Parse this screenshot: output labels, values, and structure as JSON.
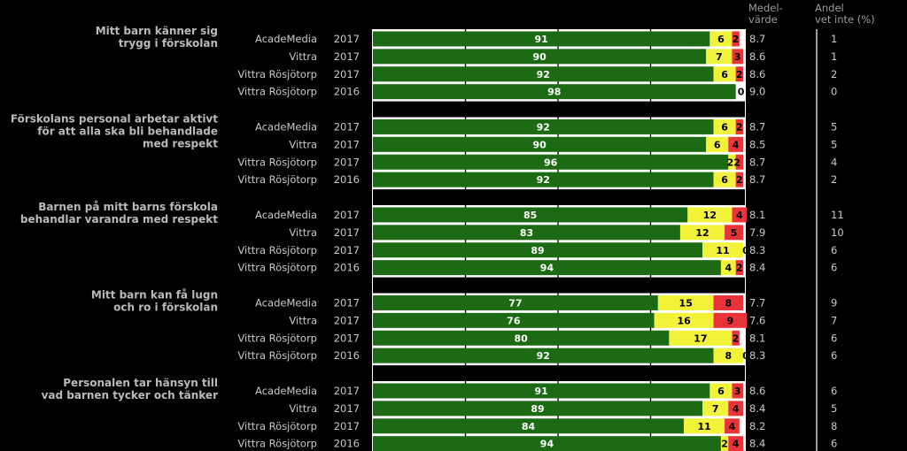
{
  "chart_data": {
    "type": "stacked_bar_horizontal",
    "column_headers": {
      "mean": [
        "Medel-",
        "värde"
      ],
      "dont_know": [
        "Andel",
        "vet inte (%)"
      ]
    },
    "colors": {
      "positive": "#1c6b14",
      "neutral": "#f2f23a",
      "negative": "#e8333a",
      "grid": "#000000",
      "text": "#c8c8c8"
    },
    "questions": [
      {
        "lines": [
          "Mitt barn känner sig",
          "trygg i förskolan"
        ],
        "rows": [
          {
            "label": "AcadeMedia",
            "year": "2017",
            "pos": 91,
            "neu": 6,
            "neg": 2,
            "mean": "8.7",
            "dont_know": "1"
          },
          {
            "label": "Vittra",
            "year": "2017",
            "pos": 90,
            "neu": 7,
            "neg": 3,
            "mean": "8.6",
            "dont_know": "1"
          },
          {
            "label": "Vittra Rösjötorp",
            "year": "2017",
            "pos": 92,
            "neu": 6,
            "neg": 2,
            "mean": "8.6",
            "dont_know": "2"
          },
          {
            "label": "Vittra Rösjötorp",
            "year": "2016",
            "pos": 98,
            "neu": 0,
            "neg": 0,
            "mean": "9.0",
            "dont_know": "0",
            "combined_label": "0"
          }
        ]
      },
      {
        "lines": [
          "Förskolans personal arbetar aktivt",
          "för att alla ska bli behandlade",
          "med respekt"
        ],
        "rows": [
          {
            "label": "AcadeMedia",
            "year": "2017",
            "pos": 92,
            "neu": 6,
            "neg": 2,
            "mean": "8.7",
            "dont_know": "5"
          },
          {
            "label": "Vittra",
            "year": "2017",
            "pos": 90,
            "neu": 6,
            "neg": 4,
            "mean": "8.5",
            "dont_know": "5"
          },
          {
            "label": "Vittra Rösjötorp",
            "year": "2017",
            "pos": 96,
            "neu": 2,
            "neg": 2,
            "mean": "8.7",
            "dont_know": "4",
            "combined_label": "22"
          },
          {
            "label": "Vittra Rösjötorp",
            "year": "2016",
            "pos": 92,
            "neu": 6,
            "neg": 2,
            "mean": "8.7",
            "dont_know": "2"
          }
        ]
      },
      {
        "lines": [
          "Barnen på mitt barns förskola",
          "behandlar varandra med respekt"
        ],
        "rows": [
          {
            "label": "AcadeMedia",
            "year": "2017",
            "pos": 85,
            "neu": 12,
            "neg": 4,
            "mean": "8.1",
            "dont_know": "11"
          },
          {
            "label": "Vittra",
            "year": "2017",
            "pos": 83,
            "neu": 12,
            "neg": 5,
            "mean": "7.9",
            "dont_know": "10"
          },
          {
            "label": "Vittra Rösjötorp",
            "year": "2017",
            "pos": 89,
            "neu": 11,
            "neg": 0,
            "mean": "8.3",
            "dont_know": "6"
          },
          {
            "label": "Vittra Rösjötorp",
            "year": "2016",
            "pos": 94,
            "neu": 4,
            "neg": 2,
            "mean": "8.4",
            "dont_know": "6"
          }
        ]
      },
      {
        "lines": [
          "Mitt barn kan få lugn",
          "och ro i förskolan"
        ],
        "rows": [
          {
            "label": "AcadeMedia",
            "year": "2017",
            "pos": 77,
            "neu": 15,
            "neg": 8,
            "mean": "7.7",
            "dont_know": "9"
          },
          {
            "label": "Vittra",
            "year": "2017",
            "pos": 76,
            "neu": 16,
            "neg": 9,
            "mean": "7.6",
            "dont_know": "7"
          },
          {
            "label": "Vittra Rösjötorp",
            "year": "2017",
            "pos": 80,
            "neu": 17,
            "neg": 2,
            "mean": "8.1",
            "dont_know": "6"
          },
          {
            "label": "Vittra Rösjötorp",
            "year": "2016",
            "pos": 92,
            "neu": 8,
            "neg": 0,
            "mean": "8.3",
            "dont_know": "6"
          }
        ]
      },
      {
        "lines": [
          "Personalen tar hänsyn till",
          "vad barnen tycker och tänker"
        ],
        "rows": [
          {
            "label": "AcadeMedia",
            "year": "2017",
            "pos": 91,
            "neu": 6,
            "neg": 3,
            "mean": "8.6",
            "dont_know": "6"
          },
          {
            "label": "Vittra",
            "year": "2017",
            "pos": 89,
            "neu": 7,
            "neg": 4,
            "mean": "8.4",
            "dont_know": "5"
          },
          {
            "label": "Vittra Rösjötorp",
            "year": "2017",
            "pos": 84,
            "neu": 11,
            "neg": 4,
            "mean": "8.2",
            "dont_know": "8"
          },
          {
            "label": "Vittra Rösjötorp",
            "year": "2016",
            "pos": 94,
            "neu": 2,
            "neg": 4,
            "mean": "8.4",
            "dont_know": "6"
          }
        ]
      }
    ]
  }
}
